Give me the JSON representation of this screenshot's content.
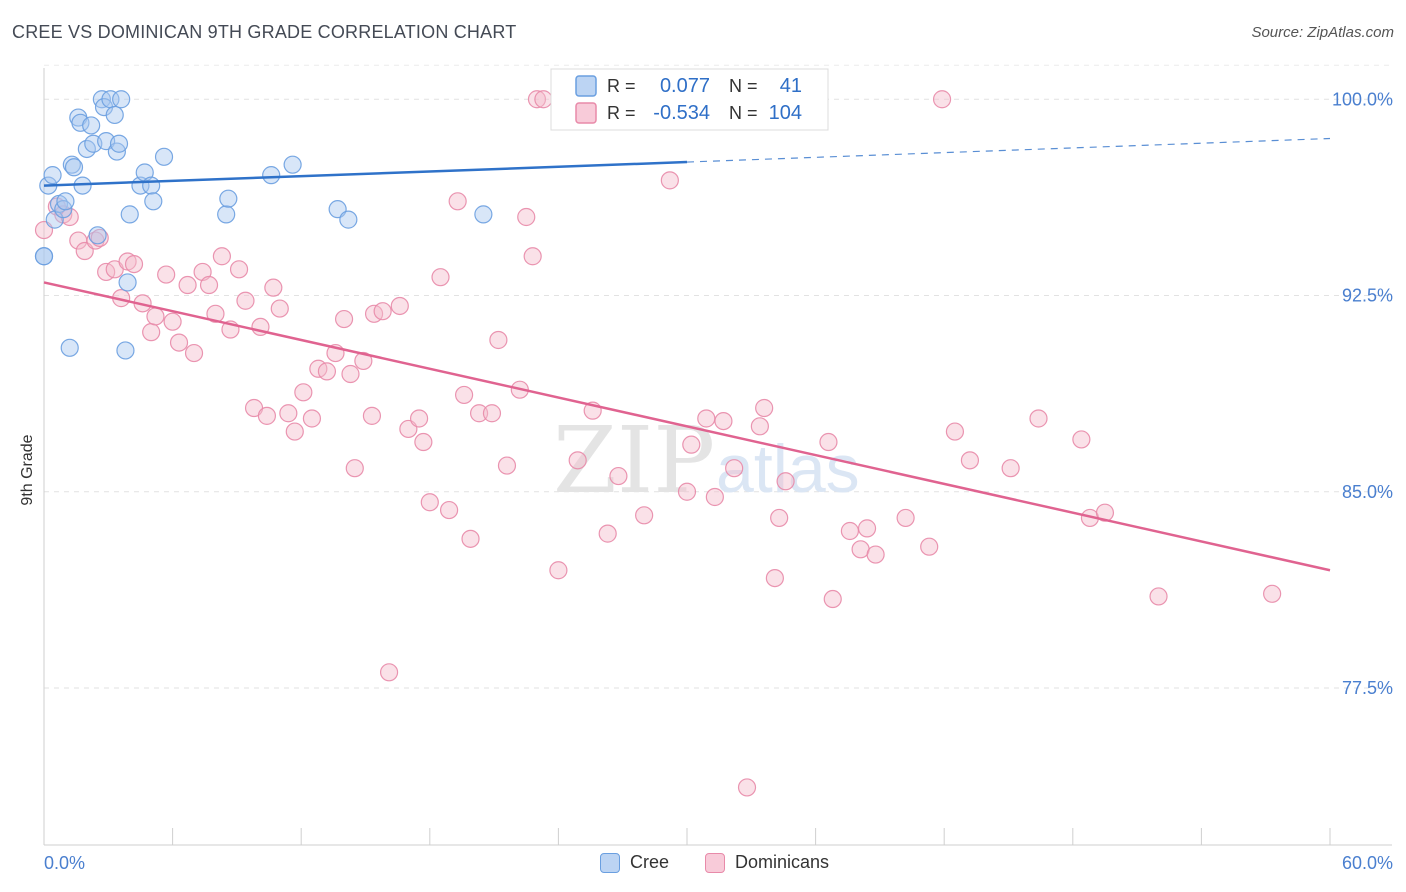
{
  "title": "CREE VS DOMINICAN 9TH GRADE CORRELATION CHART",
  "source": "Source: ZipAtlas.com",
  "watermark": {
    "zip": "ZIP",
    "atlas": "atlas"
  },
  "chart_data": {
    "type": "scatter",
    "ylabel": "9th Grade",
    "xlim": [
      0,
      60
    ],
    "ylim": [
      71.5,
      101.5
    ],
    "x_tick_labels": {
      "left": "0.0%",
      "right": "60.0%"
    },
    "y_ticks": [
      {
        "value": 100.0,
        "label": "100.0%"
      },
      {
        "value": 92.5,
        "label": "92.5%"
      },
      {
        "value": 85.0,
        "label": "85.0%"
      },
      {
        "value": 77.5,
        "label": "77.5%"
      }
    ],
    "legend": [
      {
        "r_label": "R =",
        "r_value": "0.077",
        "n_label": "N =",
        "n_value": "41"
      },
      {
        "r_label": "R =",
        "r_value": "-0.534",
        "n_label": "N =",
        "n_value": "104"
      }
    ],
    "series": [
      {
        "name": "Cree",
        "color": "#6a9fe0",
        "fill": "#a9c8f0",
        "line_color": "#2f72c9",
        "trend": {
          "x0": 0,
          "y0": 96.7,
          "x1": 30,
          "y1": 97.6,
          "x_ext": 60,
          "y_ext": 98.5
        },
        "points": [
          [
            0.0,
            94.0
          ],
          [
            0.2,
            96.7
          ],
          [
            0.4,
            97.1
          ],
          [
            0.5,
            95.4
          ],
          [
            0.7,
            96.0
          ],
          [
            0.9,
            95.8
          ],
          [
            1.0,
            96.1
          ],
          [
            1.2,
            90.5
          ],
          [
            1.3,
            97.5
          ],
          [
            1.4,
            97.4
          ],
          [
            1.6,
            99.3
          ],
          [
            1.7,
            99.1
          ],
          [
            1.8,
            96.7
          ],
          [
            2.0,
            98.1
          ],
          [
            2.2,
            99.0
          ],
          [
            2.3,
            98.3
          ],
          [
            2.5,
            94.8
          ],
          [
            2.7,
            100.0
          ],
          [
            2.8,
            99.7
          ],
          [
            2.9,
            98.4
          ],
          [
            3.1,
            100.0
          ],
          [
            3.3,
            99.4
          ],
          [
            3.4,
            98.0
          ],
          [
            3.5,
            98.3
          ],
          [
            3.6,
            100.0
          ],
          [
            3.8,
            90.4
          ],
          [
            3.9,
            93.0
          ],
          [
            4.0,
            95.6
          ],
          [
            4.5,
            96.7
          ],
          [
            4.7,
            97.2
          ],
          [
            5.0,
            96.7
          ],
          [
            5.1,
            96.1
          ],
          [
            5.6,
            97.8
          ],
          [
            8.5,
            95.6
          ],
          [
            8.6,
            96.2
          ],
          [
            10.6,
            97.1
          ],
          [
            11.6,
            97.5
          ],
          [
            13.7,
            95.8
          ],
          [
            14.2,
            95.4
          ],
          [
            20.5,
            95.6
          ],
          [
            0.0,
            94.0
          ]
        ]
      },
      {
        "name": "Dominicans",
        "color": "#e88aa9",
        "fill": "#f5bccd",
        "line_color": "#e06390",
        "trend": {
          "x0": 0,
          "y0": 93.0,
          "x1": 60,
          "y1": 82.0
        },
        "points": [
          [
            0.0,
            95.0
          ],
          [
            0.6,
            95.9
          ],
          [
            0.9,
            95.6
          ],
          [
            1.2,
            95.5
          ],
          [
            1.6,
            94.6
          ],
          [
            1.9,
            94.2
          ],
          [
            2.4,
            94.6
          ],
          [
            2.6,
            94.7
          ],
          [
            2.9,
            93.4
          ],
          [
            3.3,
            93.5
          ],
          [
            3.6,
            92.4
          ],
          [
            3.9,
            93.8
          ],
          [
            4.2,
            93.7
          ],
          [
            4.6,
            92.2
          ],
          [
            5.0,
            91.1
          ],
          [
            5.2,
            91.7
          ],
          [
            5.7,
            93.3
          ],
          [
            6.0,
            91.5
          ],
          [
            6.3,
            90.7
          ],
          [
            6.7,
            92.9
          ],
          [
            7.0,
            90.3
          ],
          [
            7.4,
            93.4
          ],
          [
            7.7,
            92.9
          ],
          [
            8.0,
            91.8
          ],
          [
            8.3,
            94.0
          ],
          [
            8.7,
            91.2
          ],
          [
            9.1,
            93.5
          ],
          [
            9.4,
            92.3
          ],
          [
            9.8,
            88.2
          ],
          [
            10.1,
            91.3
          ],
          [
            10.4,
            87.9
          ],
          [
            10.7,
            92.8
          ],
          [
            11.0,
            92.0
          ],
          [
            11.4,
            88.0
          ],
          [
            11.7,
            87.3
          ],
          [
            12.1,
            88.8
          ],
          [
            12.5,
            87.8
          ],
          [
            12.8,
            89.7
          ],
          [
            13.2,
            89.6
          ],
          [
            13.6,
            90.3
          ],
          [
            14.0,
            91.6
          ],
          [
            14.3,
            89.5
          ],
          [
            14.5,
            85.9
          ],
          [
            14.9,
            90.0
          ],
          [
            15.3,
            87.9
          ],
          [
            15.4,
            91.8
          ],
          [
            15.8,
            91.9
          ],
          [
            16.1,
            78.1
          ],
          [
            16.6,
            92.1
          ],
          [
            17.0,
            87.4
          ],
          [
            17.5,
            87.8
          ],
          [
            17.7,
            86.9
          ],
          [
            18.0,
            84.6
          ],
          [
            18.5,
            93.2
          ],
          [
            18.9,
            84.3
          ],
          [
            19.3,
            96.1
          ],
          [
            19.6,
            88.7
          ],
          [
            19.9,
            83.2
          ],
          [
            20.3,
            88.0
          ],
          [
            20.9,
            88.0
          ],
          [
            21.2,
            90.8
          ],
          [
            21.6,
            86.0
          ],
          [
            22.2,
            88.9
          ],
          [
            22.5,
            95.5
          ],
          [
            22.8,
            94.0
          ],
          [
            23.0,
            100.0
          ],
          [
            23.3,
            100.0
          ],
          [
            24.0,
            82.0
          ],
          [
            24.9,
            86.2
          ],
          [
            25.6,
            88.1
          ],
          [
            26.3,
            83.4
          ],
          [
            26.8,
            85.6
          ],
          [
            28.0,
            84.1
          ],
          [
            29.2,
            96.9
          ],
          [
            30.0,
            85.0
          ],
          [
            30.2,
            86.8
          ],
          [
            30.9,
            87.8
          ],
          [
            31.3,
            84.8
          ],
          [
            31.7,
            87.7
          ],
          [
            32.2,
            85.9
          ],
          [
            32.8,
            73.7
          ],
          [
            33.4,
            87.5
          ],
          [
            33.6,
            88.2
          ],
          [
            34.1,
            81.7
          ],
          [
            34.3,
            84.0
          ],
          [
            34.6,
            85.4
          ],
          [
            36.6,
            86.9
          ],
          [
            36.8,
            80.9
          ],
          [
            37.6,
            83.5
          ],
          [
            38.1,
            82.8
          ],
          [
            38.4,
            83.6
          ],
          [
            38.8,
            82.6
          ],
          [
            40.2,
            84.0
          ],
          [
            41.3,
            82.9
          ],
          [
            41.9,
            100.0
          ],
          [
            42.5,
            87.3
          ],
          [
            43.2,
            86.2
          ],
          [
            45.1,
            85.9
          ],
          [
            46.4,
            87.8
          ],
          [
            48.4,
            87.0
          ],
          [
            48.8,
            84.0
          ],
          [
            49.5,
            84.2
          ],
          [
            52.0,
            81.0
          ],
          [
            57.3,
            81.1
          ]
        ]
      }
    ]
  }
}
